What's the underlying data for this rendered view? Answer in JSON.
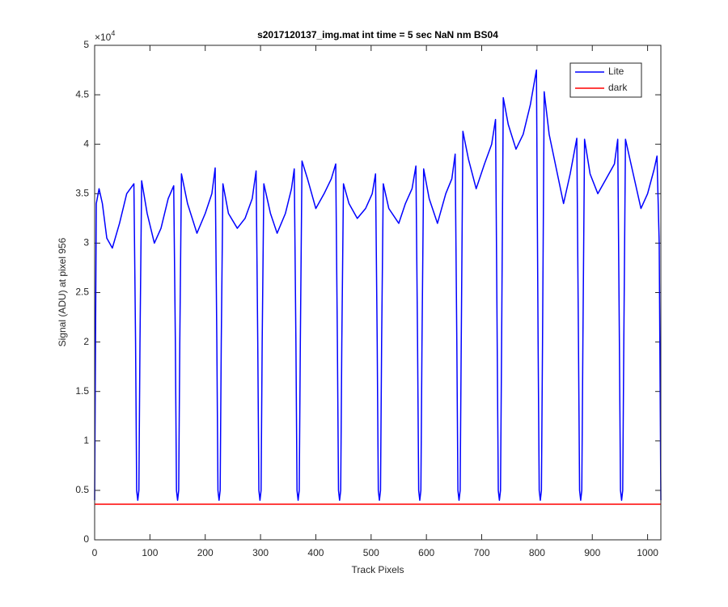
{
  "chart_data": {
    "type": "line",
    "title": "s2017120137_img.mat int time = 5 sec  NaN nm BS04",
    "x_label": "Track Pixels",
    "y_label": "Signal (ADU) at pixel 956",
    "y_multiplier": {
      "base": "×10",
      "exponent": "4"
    },
    "xlim": [
      0,
      1024
    ],
    "ylim": [
      0,
      50000
    ],
    "xticks": [
      0,
      100,
      200,
      300,
      400,
      500,
      600,
      700,
      800,
      900,
      1000
    ],
    "yticks": [
      {
        "value": 0,
        "label": "0"
      },
      {
        "value": 5000,
        "label": "0.5"
      },
      {
        "value": 10000,
        "label": "1"
      },
      {
        "value": 15000,
        "label": "1.5"
      },
      {
        "value": 20000,
        "label": "2"
      },
      {
        "value": 25000,
        "label": "2.5"
      },
      {
        "value": 30000,
        "label": "3"
      },
      {
        "value": 35000,
        "label": "3.5"
      },
      {
        "value": 40000,
        "label": "4"
      },
      {
        "value": 45000,
        "label": "4.5"
      },
      {
        "value": 50000,
        "label": "5"
      }
    ],
    "grid": false,
    "legend": "northeast",
    "series": [
      {
        "name": "Lite",
        "color": "#0000ff",
        "x": [
          0,
          3,
          8,
          14,
          22,
          32,
          45,
          58,
          71,
          74,
          76,
          78,
          80,
          82,
          85,
          95,
          108,
          120,
          133,
          143,
          146,
          148,
          150,
          152,
          154,
          157,
          168,
          185,
          200,
          212,
          218,
          221,
          223,
          225,
          227,
          229,
          232,
          242,
          258,
          272,
          285,
          292,
          295,
          297,
          299,
          301,
          303,
          306,
          318,
          330,
          345,
          356,
          361,
          364,
          366,
          368,
          370,
          372,
          375,
          385,
          400,
          415,
          428,
          436,
          439,
          441,
          443,
          445,
          447,
          450,
          460,
          475,
          490,
          502,
          508,
          511,
          513,
          515,
          517,
          519,
          522,
          532,
          550,
          562,
          574,
          581,
          584,
          586,
          588,
          590,
          592,
          595,
          605,
          620,
          635,
          646,
          652,
          655,
          657,
          659,
          661,
          663,
          666,
          676,
          690,
          705,
          718,
          725,
          728,
          730,
          732,
          734,
          736,
          739,
          748,
          762,
          775,
          788,
          799,
          802,
          804,
          806,
          808,
          810,
          813,
          822,
          835,
          848,
          860,
          872,
          875,
          877,
          879,
          881,
          883,
          886,
          896,
          910,
          925,
          940,
          946,
          949,
          951,
          953,
          955,
          957,
          960,
          972,
          988,
          1000,
          1012,
          1017,
          1021,
          1024
        ],
        "values": [
          4000,
          34000,
          35500,
          34000,
          30500,
          29500,
          32000,
          35000,
          36000,
          20000,
          5000,
          4000,
          5000,
          20000,
          36300,
          33000,
          30000,
          31500,
          34500,
          35800,
          20000,
          5000,
          4000,
          5000,
          20000,
          37000,
          34000,
          31000,
          33000,
          35000,
          37600,
          20000,
          5000,
          4000,
          5000,
          20000,
          36000,
          33000,
          31500,
          32500,
          34500,
          37300,
          20000,
          5000,
          4000,
          5000,
          20000,
          36000,
          33000,
          31000,
          33000,
          35500,
          37500,
          20000,
          5000,
          4000,
          5000,
          20000,
          38300,
          36500,
          33500,
          35000,
          36500,
          38000,
          20000,
          5000,
          4000,
          5000,
          20000,
          36000,
          34000,
          32500,
          33500,
          35000,
          37000,
          20000,
          5000,
          4000,
          5000,
          20000,
          36000,
          33500,
          32000,
          34000,
          35500,
          37800,
          20000,
          5000,
          4000,
          5000,
          20000,
          37500,
          34500,
          32000,
          35000,
          36500,
          39000,
          20000,
          5000,
          4000,
          5000,
          20000,
          41300,
          38500,
          35500,
          38000,
          40000,
          42500,
          20000,
          5000,
          4000,
          5000,
          20000,
          44700,
          42000,
          39500,
          41000,
          44000,
          47500,
          20000,
          5000,
          4000,
          5000,
          20000,
          45300,
          41000,
          37500,
          34000,
          37000,
          40600,
          20000,
          5000,
          4000,
          5000,
          20000,
          40500,
          37000,
          35000,
          36500,
          38000,
          40500,
          20000,
          5000,
          4000,
          5000,
          20000,
          40500,
          37500,
          33500,
          35000,
          37500,
          38800,
          30000,
          4000
        ]
      },
      {
        "name": "dark",
        "color": "#ff0000",
        "x": [
          0,
          1024
        ],
        "values": [
          3600,
          3600
        ]
      }
    ]
  }
}
